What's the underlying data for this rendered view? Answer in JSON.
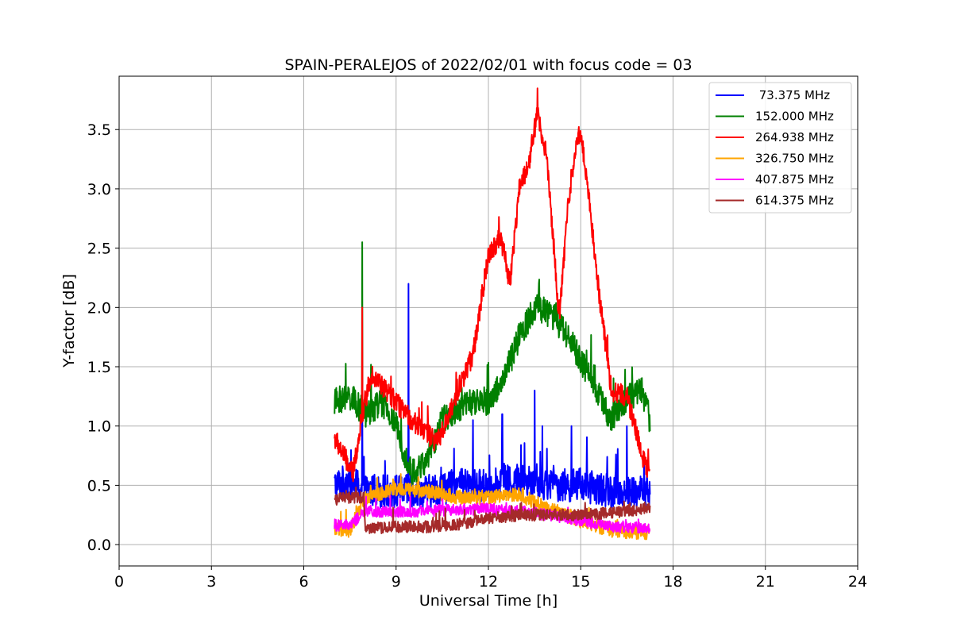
{
  "chart_data": {
    "type": "line",
    "title": "SPAIN-PERALEJOS of 2022/02/01 with focus code = 03",
    "xlabel": "Universal Time [h]",
    "ylabel": "Y-factor [dB]",
    "xlim": [
      0,
      24
    ],
    "ylim": [
      -0.18,
      3.95
    ],
    "xticks": [
      0,
      3,
      6,
      9,
      12,
      15,
      18,
      21,
      24
    ],
    "yticks": [
      0.0,
      0.5,
      1.0,
      1.5,
      2.0,
      2.5,
      3.0,
      3.5
    ],
    "xtick_labels": [
      "0",
      "3",
      "6",
      "9",
      "12",
      "15",
      "18",
      "21",
      "24"
    ],
    "ytick_labels": [
      "0.0",
      "0.5",
      "1.0",
      "1.5",
      "2.0",
      "2.5",
      "3.0",
      "3.5"
    ],
    "grid": true,
    "legend_position": "top-right",
    "series": [
      {
        "name": " 73.375 MHz",
        "color": "#0000ff",
        "noise": 0.14,
        "x": [
          7.0,
          7.5,
          8.0,
          9.0,
          10.0,
          11.0,
          12.0,
          13.0,
          14.0,
          15.0,
          16.0,
          17.0,
          17.25
        ],
        "y": [
          0.5,
          0.55,
          0.45,
          0.45,
          0.45,
          0.5,
          0.5,
          0.55,
          0.5,
          0.5,
          0.45,
          0.45,
          0.45
        ],
        "spikes": [
          [
            7.9,
            1.35
          ],
          [
            9.4,
            2.2
          ],
          [
            11.5,
            1.05
          ],
          [
            12.45,
            1.1
          ],
          [
            13.5,
            1.3
          ],
          [
            13.75,
            1.0
          ],
          [
            14.7,
            1.0
          ],
          [
            16.5,
            1.0
          ]
        ]
      },
      {
        "name": "152.000 MHz",
        "color": "#008000",
        "noise": 0.12,
        "x": [
          7.0,
          7.5,
          8.0,
          8.5,
          9.0,
          9.5,
          10.0,
          10.5,
          11.0,
          11.5,
          12.0,
          12.5,
          13.0,
          13.5,
          14.0,
          14.5,
          15.0,
          15.5,
          16.0,
          16.5,
          17.0,
          17.25
        ],
        "y": [
          1.2,
          1.25,
          1.1,
          1.2,
          1.0,
          0.6,
          0.7,
          1.05,
          1.15,
          1.2,
          1.2,
          1.4,
          1.75,
          2.0,
          1.95,
          1.8,
          1.55,
          1.3,
          1.05,
          1.25,
          1.3,
          1.05
        ],
        "spikes": [
          [
            7.9,
            2.55
          ]
        ]
      },
      {
        "name": "264.938 MHz",
        "color": "#ff0000",
        "noise": 0.09,
        "x": [
          7.0,
          7.3,
          7.6,
          7.9,
          8.2,
          8.5,
          9.0,
          9.5,
          10.0,
          10.3,
          10.6,
          11.0,
          11.5,
          12.0,
          12.4,
          12.7,
          13.0,
          13.3,
          13.6,
          13.9,
          14.1,
          14.3,
          14.6,
          14.8,
          15.0,
          15.3,
          15.6,
          16.0,
          16.5,
          17.0,
          17.25
        ],
        "y": [
          0.9,
          0.75,
          0.6,
          1.1,
          1.45,
          1.35,
          1.2,
          1.05,
          0.95,
          0.85,
          1.0,
          1.3,
          1.6,
          2.45,
          2.6,
          2.2,
          3.0,
          3.2,
          3.65,
          3.25,
          2.6,
          1.9,
          2.9,
          3.3,
          3.5,
          2.85,
          2.1,
          1.3,
          1.25,
          0.75,
          0.55
        ],
        "spikes": [
          [
            7.9,
            2.0
          ]
        ]
      },
      {
        "name": "326.750 MHz",
        "color": "#ffa500",
        "noise": 0.06,
        "x": [
          7.0,
          7.5,
          8.0,
          9.0,
          10.0,
          11.0,
          12.0,
          13.0,
          14.0,
          15.0,
          16.0,
          17.0,
          17.25
        ],
        "y": [
          0.12,
          0.12,
          0.4,
          0.47,
          0.45,
          0.4,
          0.4,
          0.42,
          0.3,
          0.2,
          0.12,
          0.1,
          0.1
        ],
        "spikes": []
      },
      {
        "name": "407.875 MHz",
        "color": "#ff00ff",
        "noise": 0.05,
        "x": [
          7.0,
          7.5,
          8.0,
          9.0,
          10.0,
          11.0,
          12.0,
          13.0,
          14.0,
          15.0,
          16.0,
          17.0,
          17.25
        ],
        "y": [
          0.16,
          0.16,
          0.28,
          0.28,
          0.28,
          0.3,
          0.3,
          0.28,
          0.25,
          0.2,
          0.15,
          0.14,
          0.14
        ],
        "spikes": []
      },
      {
        "name": "614.375 MHz",
        "color": "#a52a2a",
        "noise": 0.05,
        "x": [
          7.0,
          7.5,
          7.95,
          8.0,
          9.0,
          10.0,
          11.0,
          12.0,
          13.0,
          14.0,
          15.0,
          16.0,
          17.0,
          17.25
        ],
        "y": [
          0.38,
          0.4,
          0.4,
          0.13,
          0.15,
          0.15,
          0.17,
          0.22,
          0.25,
          0.25,
          0.25,
          0.27,
          0.3,
          0.3
        ],
        "spikes": []
      }
    ]
  }
}
